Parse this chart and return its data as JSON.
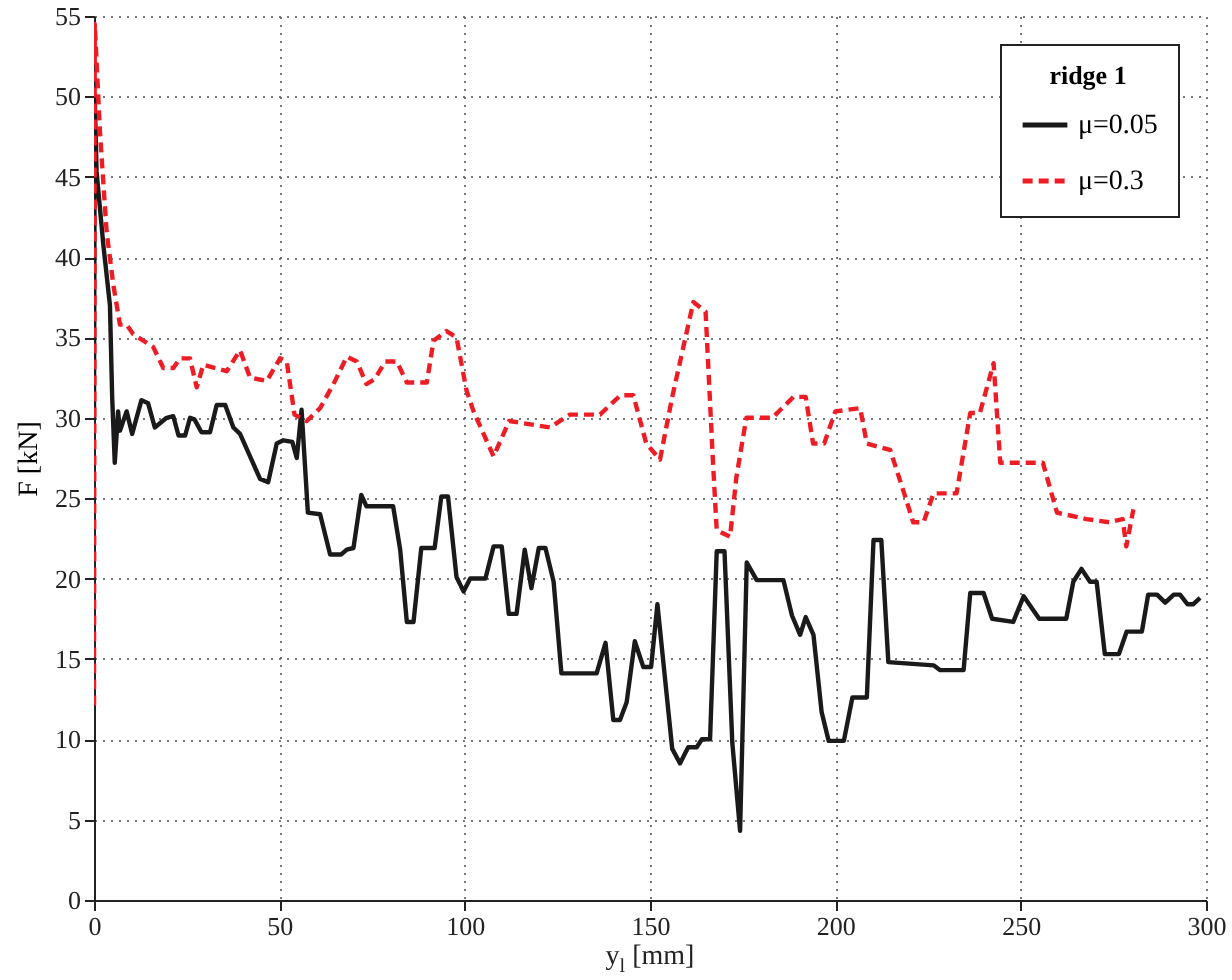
{
  "chart_data": {
    "type": "line",
    "xlabel": "y$_{l}$ [mm]",
    "ylabel": "F [kN]",
    "legend_title": "ridge 1",
    "legend": "top right",
    "grid": true,
    "xlim": [
      0,
      300
    ],
    "ylim": [
      0,
      55
    ],
    "xticks": [
      0,
      50,
      100,
      150,
      200,
      250,
      300
    ],
    "yticks": [
      0,
      5,
      10,
      15,
      20,
      25,
      30,
      35,
      40,
      45,
      50,
      55
    ],
    "series": [
      {
        "name": "μ=0.05",
        "color": "#1a1a1a",
        "line_style": "solid",
        "x": [
          0,
          0.2,
          0.7,
          2.5,
          4.3,
          4.9,
          5.6,
          6.5,
          7,
          8.8,
          10.3,
          12.8,
          14.6,
          16.4,
          19.6,
          21.4,
          22.8,
          24.6,
          25.9,
          27.1,
          29,
          31.3,
          33.1,
          35.4,
          37.6,
          39.4,
          42.1,
          44.8,
          47,
          49.3,
          51.1,
          53.5,
          54.7,
          56,
          57.7,
          61,
          63.7,
          66.7,
          68.2,
          70,
          72.1,
          73.5,
          80.7,
          82.6,
          84.4,
          86.2,
          88.3,
          91.9,
          93.7,
          95.5,
          97.8,
          99.7,
          101.5,
          105.6,
          107.8,
          110,
          111.9,
          114,
          116.2,
          118,
          120,
          121.8,
          124,
          126.1,
          135.6,
          138,
          140.1,
          141.9,
          143.7,
          145.9,
          148.2,
          150.3,
          152,
          156,
          158.1,
          160.3,
          162.6,
          164,
          166.2,
          168,
          170.1,
          172.2,
          174.3,
          176.1,
          178.8,
          186,
          188.3,
          190.5,
          192,
          194.1,
          196.3,
          198.2,
          202.3,
          204.6,
          208.5,
          210.3,
          212.4,
          214.3,
          226.5,
          228.3,
          234.6,
          236.4,
          240,
          242.3,
          248,
          250.8,
          255,
          262.3,
          264.2,
          266.4,
          268.7,
          270.5,
          272.7,
          276.5,
          278.6,
          282.7,
          284.4,
          286.8,
          289,
          291.3,
          293,
          295,
          296.5,
          298.4
        ],
        "values": [
          30,
          49.8,
          45.3,
          40.8,
          37,
          31.3,
          27.2,
          30.4,
          29.2,
          30.4,
          29,
          31.1,
          30.9,
          29.4,
          30,
          30.1,
          28.9,
          28.9,
          30,
          29.9,
          29.1,
          29.1,
          30.8,
          30.8,
          29.4,
          29,
          27.6,
          26.2,
          26,
          28.4,
          28.6,
          28.5,
          27.5,
          30.5,
          24.1,
          24,
          21.5,
          21.5,
          21.8,
          21.9,
          25.2,
          24.5,
          24.5,
          21.8,
          17.3,
          17.3,
          21.9,
          21.9,
          25.1,
          25.1,
          20.1,
          19.2,
          20,
          20,
          22,
          22,
          17.8,
          17.8,
          21.8,
          19.4,
          21.9,
          21.9,
          19.8,
          14.1,
          14.1,
          16,
          11.2,
          11.2,
          12.3,
          16.1,
          14.5,
          14.5,
          18.4,
          9.4,
          8.5,
          9.5,
          9.5,
          10,
          10,
          21.7,
          21.7,
          9.8,
          4.3,
          21,
          19.9,
          19.9,
          17.7,
          16.5,
          17.6,
          16.5,
          11.7,
          9.9,
          9.9,
          12.6,
          12.6,
          22.4,
          22.4,
          14.8,
          14.6,
          14.3,
          14.3,
          19.1,
          19.1,
          17.5,
          17.3,
          18.9,
          17.5,
          17.5,
          19.8,
          20.6,
          19.8,
          19.8,
          15.3,
          15.3,
          16.7,
          16.7,
          19,
          19,
          18.5,
          19,
          19,
          18.4,
          18.4,
          18.8
        ]
      },
      {
        "name": "μ=0.3",
        "color": "#ee1c25",
        "line_style": "dashed",
        "x": [
          0,
          0.2,
          1.6,
          3.4,
          5.2,
          7,
          8.8,
          10.6,
          13.3,
          16,
          18.7,
          21.4,
          23.2,
          25.9,
          27.7,
          29.5,
          35.8,
          39.4,
          42.1,
          46.6,
          50.2,
          52,
          54.1,
          57.4,
          61,
          64.6,
          68.2,
          70.9,
          73.5,
          75.7,
          78.6,
          81.7,
          84.4,
          89.8,
          91.6,
          95.1,
          97.8,
          100.5,
          102.4,
          107.8,
          112,
          123,
          128.4,
          136.5,
          142,
          145.5,
          149,
          152.7,
          156,
          161.7,
          165,
          167,
          168,
          171.6,
          173.3,
          176,
          183,
          188.7,
          192,
          194,
          197,
          200,
          206.7,
          208.5,
          214.8,
          219,
          221,
          223.8,
          226.5,
          232.7,
          236.4,
          239,
          242.7,
          244.5,
          250,
          256,
          259.8,
          267.7,
          274,
          277.5,
          278.5,
          280.4
        ],
        "values": [
          12.1,
          54.5,
          47.8,
          41.6,
          38.3,
          35.8,
          35.8,
          35.2,
          34.8,
          34.4,
          33.1,
          33.1,
          33.7,
          33.7,
          31.9,
          33.3,
          32.9,
          34.2,
          32.5,
          32.3,
          33.7,
          33.5,
          30.2,
          29.8,
          30.6,
          32.1,
          33.8,
          33.5,
          32.1,
          32.4,
          33.5,
          33.5,
          32.2,
          32.2,
          34.8,
          35.4,
          35,
          31.7,
          30.4,
          27.6,
          29.8,
          29.4,
          30.2,
          30.2,
          31.4,
          31.4,
          28.4,
          27.4,
          31.3,
          37.2,
          36.6,
          27.2,
          23,
          22.6,
          26.3,
          30,
          30,
          31.3,
          31.3,
          28.4,
          28.4,
          30.4,
          30.6,
          28.4,
          28,
          25,
          23.5,
          23.5,
          25.3,
          25.3,
          30.3,
          30.3,
          33.4,
          27.2,
          27.2,
          27.2,
          24.1,
          23.7,
          23.5,
          23.7,
          22,
          24.3
        ]
      }
    ]
  }
}
